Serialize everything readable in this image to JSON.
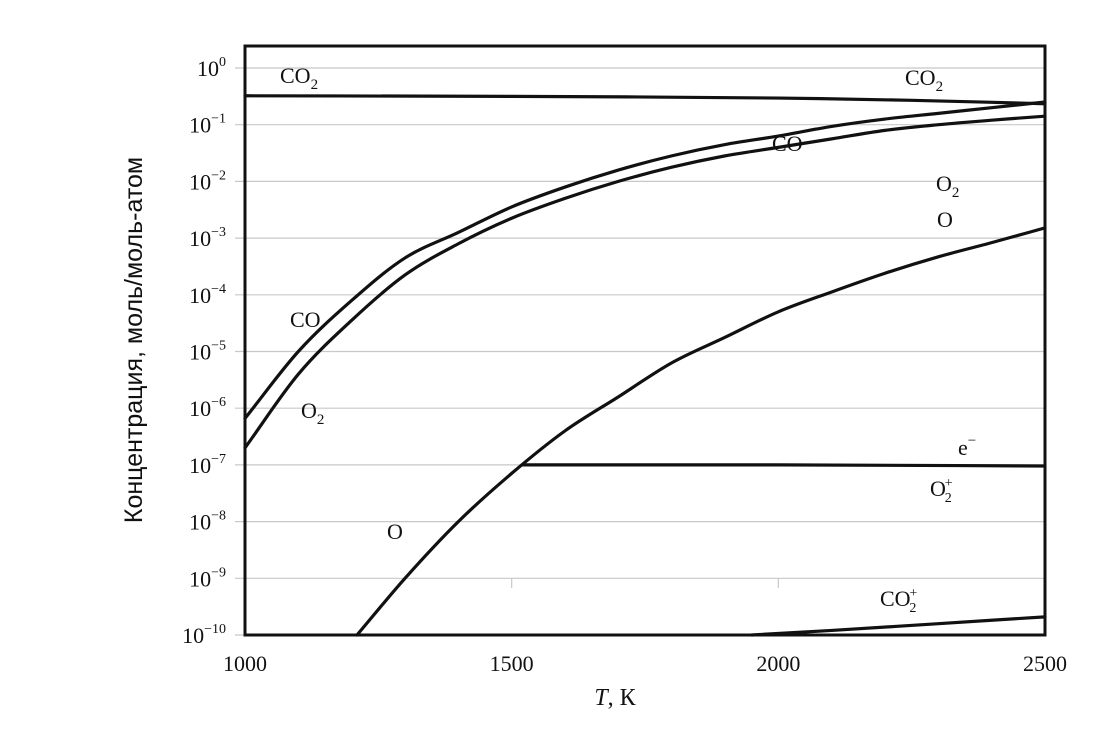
{
  "chart_data": {
    "type": "line",
    "title": "",
    "xlabel_italic": "T",
    "xlabel_unit": ", К",
    "ylabel": "Концентрация, моль/моль-атом",
    "xlim": [
      1000,
      2500
    ],
    "y_log_exponent_range": [
      -10,
      0
    ],
    "y_scale": "log",
    "grid": "horizontal",
    "x_ticks": [
      "1000",
      "1500",
      "2000",
      "2500"
    ],
    "y_tick_exponents": [
      "0",
      "−1",
      "−2",
      "−3",
      "−4",
      "−5",
      "−6",
      "−7",
      "−8",
      "−9",
      "−10"
    ],
    "y_tick_base": "10",
    "series": [
      {
        "id": "co2",
        "log10_y": {
          "x": [
            1000,
            1500,
            2000,
            2250,
            2500
          ],
          "y": [
            -0.49,
            -0.5,
            -0.53,
            -0.57,
            -0.63
          ]
        }
      },
      {
        "id": "co",
        "log10_y": {
          "x": [
            1000,
            1100,
            1200,
            1300,
            1400,
            1500,
            1600,
            1700,
            1800,
            1900,
            2000,
            2100,
            2200,
            2300,
            2400,
            2500
          ],
          "y": [
            -6.18,
            -5.0,
            -4.1,
            -3.35,
            -2.9,
            -2.45,
            -2.1,
            -1.8,
            -1.55,
            -1.35,
            -1.2,
            -1.03,
            -0.9,
            -0.8,
            -0.7,
            -0.6
          ]
        }
      },
      {
        "id": "o2",
        "log10_y": {
          "x": [
            1000,
            1100,
            1200,
            1300,
            1400,
            1500,
            1600,
            1700,
            1800,
            1900,
            2000,
            2100,
            2200,
            2300,
            2400,
            2500
          ],
          "y": [
            -6.7,
            -5.4,
            -4.45,
            -3.65,
            -3.1,
            -2.65,
            -2.3,
            -2.0,
            -1.75,
            -1.55,
            -1.4,
            -1.25,
            -1.1,
            -1.0,
            -0.92,
            -0.85
          ]
        }
      },
      {
        "id": "o",
        "log10_y": {
          "x": [
            1210,
            1300,
            1400,
            1500,
            1600,
            1700,
            1800,
            1900,
            2000,
            2100,
            2200,
            2300,
            2400,
            2500
          ],
          "y": [
            -10.0,
            -9.0,
            -8.0,
            -7.15,
            -6.4,
            -5.8,
            -5.2,
            -4.75,
            -4.3,
            -3.95,
            -3.62,
            -3.33,
            -3.08,
            -2.82
          ]
        }
      },
      {
        "id": "e",
        "log10_y": {
          "x": [
            1520,
            2000,
            2500
          ],
          "y": [
            -7.0,
            -7.0,
            -7.02
          ]
        }
      },
      {
        "id": "co2plus",
        "log10_y": {
          "x": [
            1950,
            2100,
            2300,
            2500
          ],
          "y": [
            -10.0,
            -9.92,
            -9.8,
            -9.68
          ]
        }
      }
    ],
    "annotations": {
      "co2_left": {
        "base": "CO",
        "sub": "2"
      },
      "co2_right": {
        "base": "CO",
        "sub": "2"
      },
      "co_upper": {
        "base": "CO"
      },
      "co_lower": {
        "base": "CO"
      },
      "o2_upper": {
        "base": "O",
        "sub": "2"
      },
      "o2_lower": {
        "base": "O",
        "sub": "2"
      },
      "o_upper": {
        "base": "O"
      },
      "o_lower": {
        "base": "O"
      },
      "e_minus": {
        "base": "e",
        "sup": "−"
      },
      "o2plus": {
        "base": "O",
        "sub": "2",
        "sup": "+"
      },
      "co2plus": {
        "base": "CO",
        "sub": "2",
        "sup": "+"
      }
    }
  }
}
